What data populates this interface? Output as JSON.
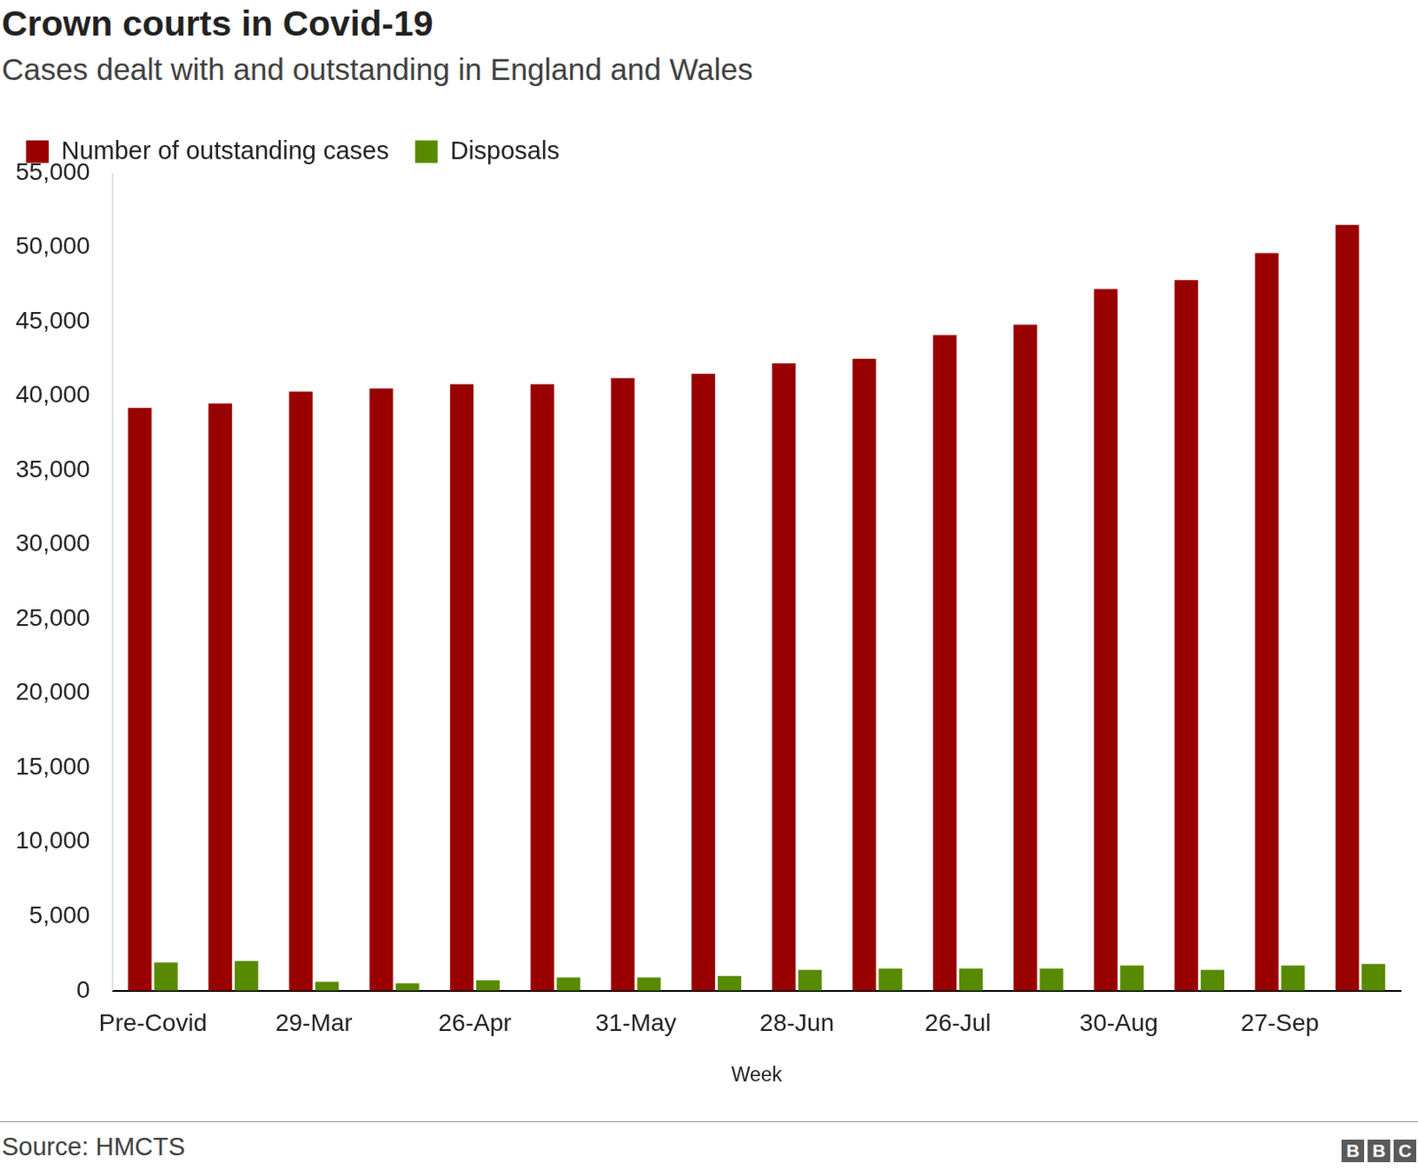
{
  "chart_data": {
    "type": "bar",
    "title": "Crown courts in Covid-19",
    "subtitle": "Cases dealt with and outstanding in England and Wales",
    "x_label": "Week",
    "source": "Source: HMCTS",
    "logo": "BBC",
    "categories": [
      "Pre-Covid",
      null,
      "29-Mar",
      null,
      "26-Apr",
      null,
      "31-May",
      null,
      "28-Jun",
      null,
      "26-Jul",
      null,
      "30-Aug",
      null,
      "27-Sep",
      null
    ],
    "series": [
      {
        "name": "Number of outstanding cases",
        "color": "#990000",
        "values": [
          39200,
          39500,
          40300,
          40500,
          40800,
          40800,
          41200,
          41500,
          42200,
          42500,
          44100,
          44800,
          47200,
          47800,
          49600,
          51500
        ]
      },
      {
        "name": "Disposals",
        "color": "#588a00",
        "values": [
          1900,
          2000,
          600,
          500,
          700,
          900,
          900,
          1000,
          1400,
          1500,
          1500,
          1500,
          1700,
          1400,
          1700,
          1800
        ]
      }
    ],
    "ylim": [
      0,
      55000
    ],
    "yticks": [
      {
        "value": 0,
        "label": "0"
      },
      {
        "value": 5000,
        "label": "5,000"
      },
      {
        "value": 10000,
        "label": "10,000"
      },
      {
        "value": 15000,
        "label": "15,000"
      },
      {
        "value": 20000,
        "label": "20,000"
      },
      {
        "value": 25000,
        "label": "25,000"
      },
      {
        "value": 30000,
        "label": "30,000"
      },
      {
        "value": 35000,
        "label": "35,000"
      },
      {
        "value": 40000,
        "label": "40,000"
      },
      {
        "value": 45000,
        "label": "45,000"
      },
      {
        "value": 50000,
        "label": "50,000"
      },
      {
        "value": 55000,
        "label": "55,000"
      }
    ],
    "grid": false,
    "legend": "top-left"
  }
}
